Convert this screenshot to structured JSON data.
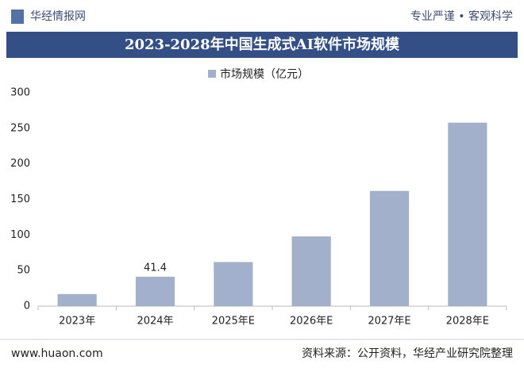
{
  "header": {
    "brand": "华经情报网",
    "slogan": "专业严谨 • 客观科学"
  },
  "chart_data": {
    "type": "bar",
    "title": "2023-2028年中国生成式AI软件市场规模",
    "categories": [
      "2023年",
      "2024年",
      "2025年E",
      "2026年E",
      "2027年E",
      "2028年E"
    ],
    "series": [
      {
        "name": "市场规模（亿元）",
        "color": "#a3b0cb",
        "values": [
          17,
          41.4,
          62,
          98,
          162,
          258
        ]
      }
    ],
    "value_labels": [
      null,
      "41.4",
      null,
      null,
      null,
      null
    ],
    "ylim": [
      0,
      300
    ],
    "yticks": [
      0,
      50,
      100,
      150,
      200,
      250,
      300
    ],
    "grid": false
  },
  "footer": {
    "website": "www.huaon.com",
    "source": "资料来源：公开资料，华经产业研究院整理"
  }
}
